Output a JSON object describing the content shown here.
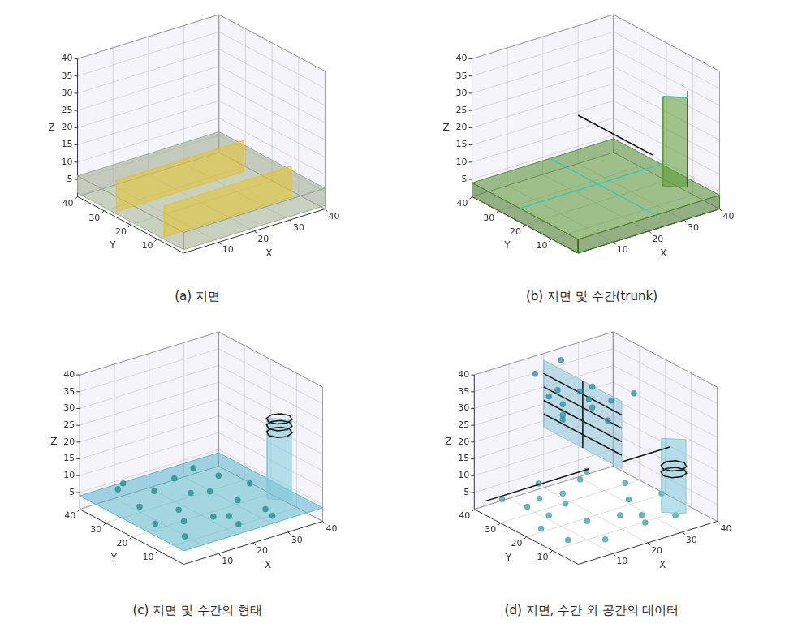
{
  "chart_data": [
    {
      "type": "scatter3d",
      "title": "(a) 지면",
      "x_label": "X",
      "y_label": "Y",
      "z_label": "Z",
      "xlim": [
        0,
        40
      ],
      "ylim": [
        0,
        40
      ],
      "zlim": [
        0,
        40
      ],
      "xticks": [
        10,
        20,
        30,
        40
      ],
      "yticks": [
        10,
        20,
        30,
        40
      ],
      "zticks": [
        5,
        10,
        15,
        20,
        25,
        30,
        35,
        40
      ],
      "grid": true,
      "series": [
        {
          "type": "polygon",
          "color": "#9aaa8a",
          "x": [
            0,
            0,
            0,
            0
          ],
          "y": [
            0,
            40,
            40,
            0
          ],
          "z": [
            1,
            1,
            6,
            6
          ]
        },
        {
          "type": "polygon",
          "color": "#9aaa8a",
          "x": [
            0,
            40,
            40,
            0
          ],
          "y": [
            0,
            0,
            0,
            0
          ],
          "z": [
            1,
            1,
            6,
            6
          ]
        },
        {
          "type": "polygon",
          "color": "#9aaa8a",
          "x": [
            0,
            40,
            40,
            0
          ],
          "y": [
            0,
            0,
            40,
            40
          ],
          "z": [
            6,
            6,
            6,
            6
          ]
        },
        {
          "type": "polygon",
          "color": "#e6c229",
          "x": [
            2,
            38,
            38,
            2
          ],
          "y": [
            28,
            28,
            28,
            28
          ],
          "z": [
            0,
            0,
            9,
            9
          ]
        },
        {
          "type": "polygon",
          "color": "#e6c229",
          "x": [
            2,
            38,
            38,
            2
          ],
          "y": [
            10,
            10,
            10,
            10
          ],
          "z": [
            0,
            0,
            9,
            9
          ]
        }
      ]
    },
    {
      "type": "scatter3d",
      "title": "(b) 지면 및 수간(trunk)",
      "x_label": "X",
      "y_label": "Y",
      "z_label": "Z",
      "xlim": [
        0,
        40
      ],
      "ylim": [
        0,
        40
      ],
      "zlim": [
        0,
        40
      ],
      "xticks": [
        10,
        20,
        30,
        40
      ],
      "yticks": [
        10,
        20,
        30,
        40
      ],
      "zticks": [
        5,
        10,
        15,
        20,
        25,
        30,
        35,
        40
      ],
      "grid": true,
      "series": [
        {
          "type": "polygon",
          "color": "#3a6e1e",
          "x": [
            0,
            0,
            0,
            0
          ],
          "y": [
            0,
            40,
            40,
            0
          ],
          "z": [
            0,
            0,
            4,
            4
          ]
        },
        {
          "type": "polygon",
          "color": "#3a6e1e",
          "x": [
            0,
            40,
            40,
            0
          ],
          "y": [
            0,
            0,
            0,
            0
          ],
          "z": [
            0,
            0,
            4,
            4
          ]
        },
        {
          "type": "polygon",
          "color": "#4f8a2a",
          "x": [
            0,
            40,
            40,
            0
          ],
          "y": [
            0,
            0,
            40,
            40
          ],
          "z": [
            4,
            4,
            4,
            4
          ]
        },
        {
          "type": "line",
          "color": "#3cc8b4",
          "line_style": "solid",
          "x": [
            0,
            40
          ],
          "y": [
            22,
            22
          ],
          "z": [
            4,
            4
          ]
        },
        {
          "type": "line",
          "color": "#3cc8b4",
          "line_style": "solid",
          "x": [
            22,
            22
          ],
          "y": [
            0,
            40
          ],
          "z": [
            4,
            4
          ]
        },
        {
          "type": "line",
          "color": "#111111",
          "line_style": "solid",
          "x": [
            30,
            30
          ],
          "y": [
            40,
            12
          ],
          "z": [
            14,
            14
          ]
        },
        {
          "type": "polygon",
          "color": "#5a9a30",
          "x": [
            33,
            37,
            37,
            33
          ],
          "y": [
            12,
            8,
            8,
            12
          ],
          "z": [
            4,
            4,
            30,
            30
          ]
        },
        {
          "type": "line",
          "color": "#111111",
          "line_style": "solid",
          "x": [
            37,
            37
          ],
          "y": [
            8,
            8
          ],
          "z": [
            4,
            32
          ]
        },
        {
          "type": "line",
          "color": "#3cc8b4",
          "line_style": "solid",
          "x": [
            33,
            37
          ],
          "y": [
            12,
            8
          ],
          "z": [
            30,
            30
          ]
        }
      ]
    },
    {
      "type": "scatter3d",
      "title": "(c) 지면 및 수간의 형태",
      "x_label": "X",
      "y_label": "Y",
      "z_label": "Z",
      "xlim": [
        0,
        40
      ],
      "ylim": [
        0,
        40
      ],
      "zlim": [
        0,
        40
      ],
      "xticks": [
        10,
        20,
        30,
        40
      ],
      "yticks": [
        10,
        20,
        30,
        40
      ],
      "zticks": [
        5,
        10,
        15,
        20,
        25,
        30,
        35,
        40
      ],
      "grid": true,
      "series": [
        {
          "type": "polygon",
          "color": "#5ab4c8",
          "x": [
            0,
            40,
            40,
            0
          ],
          "y": [
            0,
            0,
            40,
            40
          ],
          "z": [
            4,
            4,
            4,
            4
          ]
        },
        {
          "type": "scatter",
          "color": "#1e8c8c",
          "marker": "circle",
          "x": [
            4,
            9,
            14,
            19,
            24,
            29,
            6,
            12,
            18,
            26,
            31,
            8,
            16,
            22,
            28,
            3,
            11,
            20,
            27,
            34
          ],
          "y": [
            5,
            12,
            30,
            8,
            22,
            35,
            25,
            18,
            3,
            14,
            28,
            36,
            10,
            33,
            6,
            15,
            38,
            24,
            2,
            20
          ],
          "z": [
            5,
            5,
            5,
            5,
            5,
            5,
            5,
            5,
            5,
            5,
            5,
            5,
            5,
            5,
            5,
            5,
            5,
            5,
            5,
            5
          ]
        },
        {
          "type": "polygon",
          "color": "#7ecad8",
          "x": [
            33,
            37,
            37,
            33
          ],
          "y": [
            12,
            8,
            8,
            12
          ],
          "z": [
            4,
            4,
            28,
            28
          ]
        },
        {
          "type": "line",
          "color": "#111111",
          "line_style": "solid",
          "x": [
            38,
            37.1,
            35,
            32.9,
            32,
            32.9,
            35,
            37.1,
            38
          ],
          "y": [
            10,
            12.1,
            13,
            12.1,
            10,
            7.9,
            7,
            7.9,
            10
          ],
          "z": [
            24,
            24,
            24,
            24,
            24,
            24,
            24,
            24,
            24
          ]
        },
        {
          "type": "line",
          "color": "#111111",
          "line_style": "solid",
          "x": [
            38,
            37.1,
            35,
            32.9,
            32,
            32.9,
            35,
            37.1,
            38
          ],
          "y": [
            10,
            12.1,
            13,
            12.1,
            10,
            7.9,
            7,
            7.9,
            10
          ],
          "z": [
            26,
            26,
            26,
            26,
            26,
            26,
            26,
            26,
            26
          ]
        },
        {
          "type": "line",
          "color": "#111111",
          "line_style": "solid",
          "x": [
            38,
            37.1,
            35,
            32.9,
            32,
            32.9,
            35,
            37.1,
            38
          ],
          "y": [
            10,
            12.1,
            13,
            12.1,
            10,
            7.9,
            7,
            7.9,
            10
          ],
          "z": [
            28,
            28,
            28,
            28,
            28,
            28,
            28,
            28,
            28
          ]
        }
      ]
    },
    {
      "type": "scatter3d",
      "title": "(d) 지면, 수간 외 공간의 데이터",
      "x_label": "X",
      "y_label": "Y",
      "z_label": "Z",
      "xlim": [
        0,
        40
      ],
      "ylim": [
        0,
        40
      ],
      "zlim": [
        0,
        40
      ],
      "xticks": [
        10,
        20,
        30,
        40
      ],
      "yticks": [
        10,
        20,
        30,
        40
      ],
      "zticks": [
        5,
        10,
        15,
        20,
        25,
        30,
        35,
        40
      ],
      "grid": true,
      "series": [
        {
          "type": "scatter",
          "color": "#3a9fb0",
          "marker": "circle",
          "x": [
            3,
            8,
            13,
            18,
            23,
            28,
            33,
            5,
            10,
            15,
            21,
            26,
            31,
            36,
            7,
            17,
            25,
            2,
            12,
            30
          ],
          "y": [
            8,
            22,
            14,
            30,
            5,
            18,
            26,
            36,
            3,
            25,
            12,
            34,
            4,
            16,
            29,
            38,
            9,
            17,
            31,
            37
          ],
          "z": [
            3,
            3,
            3,
            3,
            3,
            3,
            3,
            3,
            3,
            3,
            3,
            3,
            3,
            3,
            3,
            3,
            3,
            3,
            3,
            3
          ]
        },
        {
          "type": "line",
          "color": "#111111",
          "line_style": "solid",
          "x": [
            0,
            30
          ],
          "y": [
            36,
            36
          ],
          "z": [
            4,
            4
          ]
        },
        {
          "type": "polygon",
          "color": "#7ecad8",
          "x": [
            33,
            37,
            37,
            33
          ],
          "y": [
            12,
            8,
            8,
            12
          ],
          "z": [
            0,
            0,
            22,
            22
          ]
        },
        {
          "type": "line",
          "color": "#111111",
          "line_style": "solid",
          "x": [
            38,
            37.1,
            35,
            32.9,
            32,
            32.9,
            35,
            37.1,
            38
          ],
          "y": [
            10,
            12.1,
            13,
            12.1,
            10,
            7.9,
            7,
            7.9,
            10
          ],
          "z": [
            12,
            12,
            12,
            12,
            12,
            12,
            12,
            12,
            12
          ]
        },
        {
          "type": "line",
          "color": "#111111",
          "line_style": "solid",
          "x": [
            38,
            37.1,
            35,
            32.9,
            32,
            32.9,
            35,
            37.1,
            38
          ],
          "y": [
            10,
            12.1,
            13,
            12.1,
            10,
            7.9,
            7,
            7.9,
            10
          ],
          "z": [
            14,
            14,
            14,
            14,
            14,
            14,
            14,
            14,
            14
          ]
        },
        {
          "type": "line",
          "color": "#111111",
          "line_style": "solid",
          "x": [
            20,
            34
          ],
          "y": [
            10,
            10
          ],
          "z": [
            20,
            20
          ]
        },
        {
          "type": "polygon",
          "color": "#8ec5d6",
          "x": [
            20,
            20,
            20,
            20
          ],
          "y": [
            40,
            10,
            10,
            40
          ],
          "z": [
            18,
            18,
            38,
            38
          ]
        },
        {
          "type": "line",
          "color": "#111111",
          "line_style": "solid",
          "x": [
            20,
            20
          ],
          "y": [
            40,
            10
          ],
          "z": [
            22,
            22
          ]
        },
        {
          "type": "line",
          "color": "#111111",
          "line_style": "solid",
          "x": [
            20,
            20
          ],
          "y": [
            40,
            10
          ],
          "z": [
            26,
            26
          ]
        },
        {
          "type": "line",
          "color": "#111111",
          "line_style": "solid",
          "x": [
            20,
            20
          ],
          "y": [
            40,
            10
          ],
          "z": [
            30,
            30
          ]
        },
        {
          "type": "line",
          "color": "#111111",
          "line_style": "solid",
          "x": [
            20,
            20
          ],
          "y": [
            40,
            10
          ],
          "z": [
            34,
            34
          ]
        },
        {
          "type": "line",
          "color": "#111111",
          "line_style": "solid",
          "x": [
            20,
            20
          ],
          "y": [
            25,
            25
          ],
          "z": [
            18,
            38
          ]
        },
        {
          "type": "scatter",
          "color": "#2a8fa0",
          "marker": "circle",
          "x": [
            16,
            18,
            22,
            24,
            17,
            23,
            19,
            21,
            15,
            25,
            18,
            22,
            20,
            16
          ],
          "y": [
            38,
            32,
            36,
            28,
            22,
            18,
            14,
            34,
            26,
            12,
            30,
            24,
            38,
            16
          ],
          "z": [
            36,
            33,
            39,
            30,
            37,
            34,
            31,
            27,
            29,
            38,
            25,
            36,
            28,
            35
          ]
        }
      ]
    }
  ]
}
